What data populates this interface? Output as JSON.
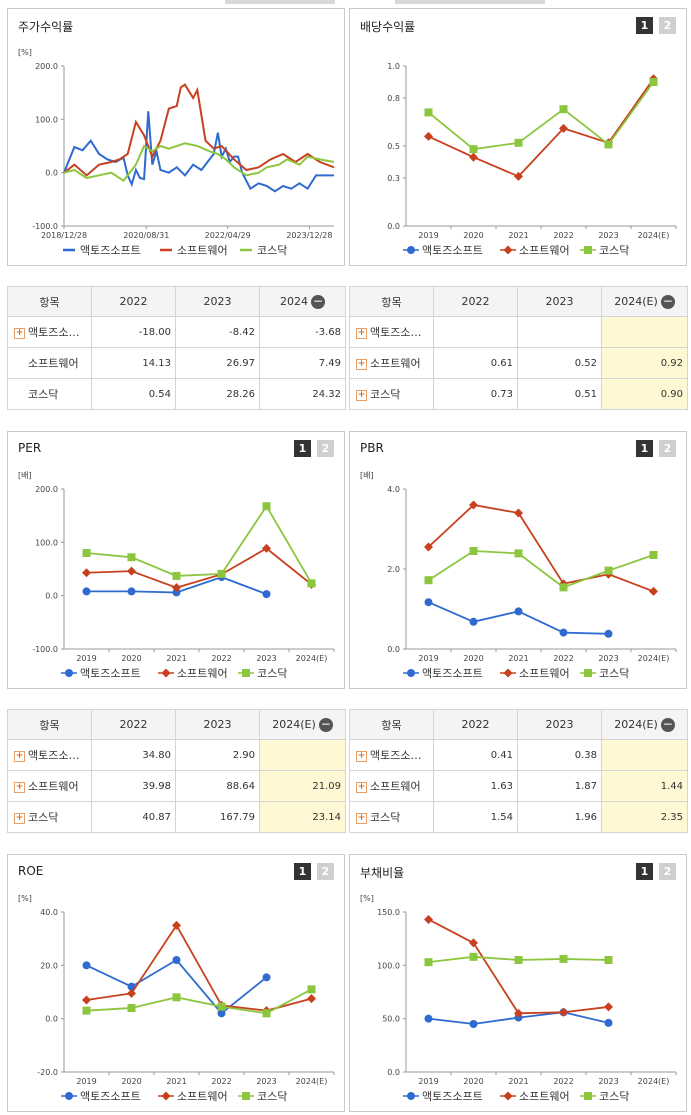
{
  "legend": [
    "액토즈소프트",
    "소프트웨어",
    "코스닥"
  ],
  "colors": {
    "s1": "#2f6ad0",
    "s2": "#c8401e",
    "s3": "#8cc63f"
  },
  "buttons": {
    "b1": "1",
    "b2": "2"
  },
  "stock": {
    "title": "주가수익률",
    "unit": "[%]",
    "y_ticks": [
      "200.0",
      "100.0",
      "0.0",
      "-100.0"
    ],
    "x_ticks": [
      "2018/12/28",
      "2020/08/31",
      "2022/04/29",
      "2023/12/28"
    ]
  },
  "chart_data": [
    {
      "type": "line",
      "title": "주가수익률",
      "ylabel": "[%]",
      "ylim": [
        -100,
        200
      ],
      "x_range": [
        "2018-12-28",
        "2024-06-28"
      ],
      "series": [
        {
          "name": "액토즈소프트",
          "x": [
            "2018-12-28",
            "2019-03",
            "2019-05",
            "2019-07",
            "2019-09",
            "2019-11",
            "2020-01",
            "2020-03",
            "2020-04",
            "2020-05",
            "2020-06",
            "2020-07",
            "2020-08",
            "2020-09",
            "2020-10",
            "2020-11",
            "2020-12",
            "2021-02",
            "2021-04",
            "2021-06",
            "2021-08",
            "2021-10",
            "2021-12",
            "2022-01",
            "2022-02",
            "2022-03",
            "2022-04",
            "2022-05",
            "2022-06",
            "2022-07",
            "2022-08",
            "2022-10",
            "2022-12",
            "2023-02",
            "2023-04",
            "2023-06",
            "2023-08",
            "2023-10",
            "2023-12",
            "2024-02",
            "2024-04",
            "2024-06-28"
          ],
          "values": [
            0,
            48,
            42,
            60,
            35,
            25,
            20,
            28,
            -5,
            -22,
            5,
            -10,
            -12,
            115,
            15,
            40,
            5,
            0,
            10,
            -5,
            15,
            5,
            25,
            35,
            75,
            30,
            45,
            20,
            30,
            30,
            0,
            -30,
            -20,
            -25,
            -35,
            -25,
            -30,
            -20,
            -30,
            -5,
            -5,
            -5
          ]
        },
        {
          "name": "소프트웨어",
          "x": [
            "2018-12-28",
            "2019-03",
            "2019-06",
            "2019-09",
            "2019-12",
            "2020-02",
            "2020-04",
            "2020-06",
            "2020-08",
            "2020-10",
            "2020-12",
            "2021-02",
            "2021-04",
            "2021-05",
            "2021-06",
            "2021-08",
            "2021-09",
            "2021-11",
            "2022-01",
            "2022-03",
            "2022-06",
            "2022-09",
            "2022-12",
            "2023-03",
            "2023-06",
            "2023-09",
            "2023-12",
            "2024-03",
            "2024-06-28"
          ],
          "values": [
            0,
            15,
            -5,
            15,
            20,
            25,
            35,
            95,
            70,
            30,
            60,
            120,
            125,
            160,
            165,
            140,
            155,
            60,
            45,
            50,
            25,
            5,
            10,
            25,
            35,
            20,
            35,
            20,
            10
          ]
        },
        {
          "name": "코스닥",
          "x": [
            "2018-12-28",
            "2019-03",
            "2019-06",
            "2019-09",
            "2019-12",
            "2020-03",
            "2020-06",
            "2020-08",
            "2020-10",
            "2020-12",
            "2021-02",
            "2021-06",
            "2021-09",
            "2021-12",
            "2022-02",
            "2022-04",
            "2022-06",
            "2022-09",
            "2022-12",
            "2023-02",
            "2023-05",
            "2023-07",
            "2023-10",
            "2023-12",
            "2024-03",
            "2024-06-28"
          ],
          "values": [
            0,
            5,
            -10,
            -5,
            0,
            -15,
            15,
            50,
            40,
            50,
            45,
            55,
            50,
            40,
            35,
            25,
            10,
            -5,
            0,
            10,
            15,
            25,
            15,
            30,
            25,
            20
          ]
        }
      ]
    },
    {
      "type": "line",
      "title": "배당수익률",
      "ylim": [
        0,
        1.0
      ],
      "categories": [
        "2019",
        "2020",
        "2021",
        "2022",
        "2023",
        "2024(E)"
      ],
      "series": [
        {
          "name": "소프트웨어",
          "values": [
            0.56,
            0.43,
            0.31,
            0.61,
            0.52,
            0.92
          ]
        },
        {
          "name": "코스닥",
          "values": [
            0.71,
            0.48,
            0.52,
            0.73,
            0.51,
            0.9
          ]
        }
      ]
    },
    {
      "type": "line",
      "title": "PER",
      "ylabel": "[배]",
      "ylim": [
        -100,
        200
      ],
      "categories": [
        "2019",
        "2020",
        "2021",
        "2022",
        "2023",
        "2024(E)"
      ],
      "series": [
        {
          "name": "액토즈소프트",
          "values": [
            8,
            8,
            6,
            34.8,
            2.9,
            null
          ]
        },
        {
          "name": "소프트웨어",
          "values": [
            43,
            46,
            15,
            39.98,
            88.64,
            21.09
          ]
        },
        {
          "name": "코스닥",
          "values": [
            80,
            72,
            37,
            40.87,
            167.79,
            23.14
          ]
        }
      ]
    },
    {
      "type": "line",
      "title": "PBR",
      "ylabel": "[배]",
      "ylim": [
        0,
        4.0
      ],
      "categories": [
        "2019",
        "2020",
        "2021",
        "2022",
        "2023",
        "2024(E)"
      ],
      "series": [
        {
          "name": "액토즈소프트",
          "values": [
            1.17,
            0.68,
            0.94,
            0.41,
            0.38,
            null
          ]
        },
        {
          "name": "소프트웨어",
          "values": [
            2.55,
            3.6,
            3.4,
            1.63,
            1.87,
            1.44
          ]
        },
        {
          "name": "코스닥",
          "values": [
            1.72,
            2.45,
            2.39,
            1.54,
            1.96,
            2.35
          ]
        }
      ]
    },
    {
      "type": "line",
      "title": "ROE",
      "ylabel": "[%]",
      "ylim": [
        -20,
        40
      ],
      "categories": [
        "2019",
        "2020",
        "2021",
        "2022",
        "2023",
        "2024(E)"
      ],
      "series": [
        {
          "name": "액토즈소프트",
          "values": [
            20,
            12,
            22,
            2,
            15.5,
            null
          ]
        },
        {
          "name": "소프트웨어",
          "values": [
            7,
            9.5,
            35,
            5,
            3,
            7.5
          ]
        },
        {
          "name": "코스닥",
          "values": [
            3,
            4,
            8,
            4.5,
            2,
            11
          ]
        }
      ]
    },
    {
      "type": "line",
      "title": "부채비율",
      "ylabel": "[%]",
      "ylim": [
        0,
        150
      ],
      "categories": [
        "2019",
        "2020",
        "2021",
        "2022",
        "2023",
        "2024(E)"
      ],
      "series": [
        {
          "name": "액토즈소프트",
          "values": [
            50,
            45,
            51,
            56,
            46,
            null
          ]
        },
        {
          "name": "소프트웨어",
          "values": [
            143,
            121,
            55,
            56,
            61,
            null
          ]
        },
        {
          "name": "코스닥",
          "values": [
            103,
            108,
            105,
            106,
            105,
            null
          ]
        }
      ]
    }
  ],
  "tables": {
    "stock": {
      "header": [
        "항목",
        "2022",
        "2023",
        "2024"
      ],
      "rows": [
        {
          "name": "액토즈소…",
          "cells": [
            "-18.00",
            "-8.42",
            "-3.68"
          ],
          "icon": true
        },
        {
          "name": "소프트웨어",
          "cells": [
            "14.13",
            "26.97",
            "7.49"
          ],
          "icon": false
        },
        {
          "name": "코스닥",
          "cells": [
            "0.54",
            "28.26",
            "24.32"
          ],
          "icon": false
        }
      ]
    },
    "div": {
      "header": [
        "항목",
        "2022",
        "2023",
        "2024(E)"
      ],
      "rows": [
        {
          "name": "액토즈소…",
          "cells": [
            "",
            "",
            ""
          ],
          "icon": true
        },
        {
          "name": "소프트웨어",
          "cells": [
            "0.61",
            "0.52",
            "0.92"
          ],
          "icon": true
        },
        {
          "name": "코스닥",
          "cells": [
            "0.73",
            "0.51",
            "0.90"
          ],
          "icon": true
        }
      ]
    },
    "per": {
      "header": [
        "항목",
        "2022",
        "2023",
        "2024(E)"
      ],
      "rows": [
        {
          "name": "액토즈소…",
          "cells": [
            "34.80",
            "2.90",
            ""
          ],
          "icon": true
        },
        {
          "name": "소프트웨어",
          "cells": [
            "39.98",
            "88.64",
            "21.09"
          ],
          "icon": true
        },
        {
          "name": "코스닥",
          "cells": [
            "40.87",
            "167.79",
            "23.14"
          ],
          "icon": true
        }
      ]
    },
    "pbr": {
      "header": [
        "항목",
        "2022",
        "2023",
        "2024(E)"
      ],
      "rows": [
        {
          "name": "액토즈소…",
          "cells": [
            "0.41",
            "0.38",
            ""
          ],
          "icon": true
        },
        {
          "name": "소프트웨어",
          "cells": [
            "1.63",
            "1.87",
            "1.44"
          ],
          "icon": true
        },
        {
          "name": "코스닥",
          "cells": [
            "1.54",
            "1.96",
            "2.35"
          ],
          "icon": true
        }
      ]
    }
  },
  "panels": {
    "div": {
      "title": "배당수익률",
      "y_ticks": [
        "1.0",
        "0.8",
        "0.5",
        "0.3",
        "0.0"
      ]
    },
    "per": {
      "title": "PER",
      "unit": "[배]",
      "y_ticks": [
        "200.0",
        "100.0",
        "0.0",
        "-100.0"
      ]
    },
    "pbr": {
      "title": "PBR",
      "unit": "[배]",
      "y_ticks": [
        "4.0",
        "2.0",
        "0.0"
      ]
    },
    "roe": {
      "title": "ROE",
      "unit": "[%]",
      "y_ticks": [
        "40.0",
        "20.0",
        "0.0",
        "-20.0"
      ]
    },
    "debt": {
      "title": "부채비율",
      "unit": "[%]",
      "y_ticks": [
        "150.0",
        "100.0",
        "50.0",
        "0.0"
      ]
    }
  }
}
